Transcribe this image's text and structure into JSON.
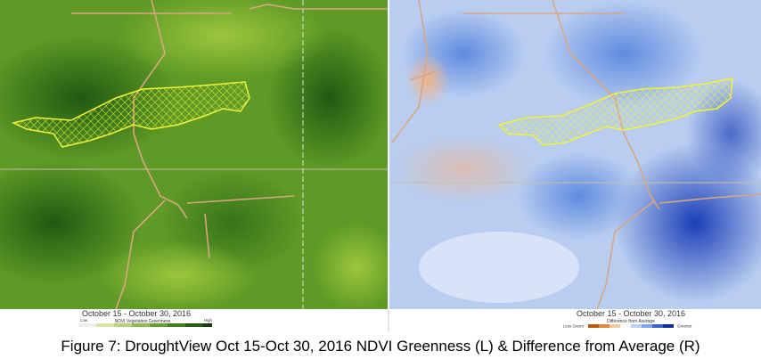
{
  "left_panel": {
    "date_range": "October 15 - October 30, 2016",
    "legend_title": "NDVI Vegetation Greenness",
    "legend_low": "Low",
    "legend_high": "High"
  },
  "right_panel": {
    "date_range": "October 15 - October 30, 2016",
    "legend_title": "Difference from Average",
    "legend_low": "Less Green",
    "legend_high": "Greener"
  },
  "caption": "Figure 7: DroughtView Oct 15-Oct 30, 2016 NDVI Greenness (L) & Difference from Average (R)"
}
